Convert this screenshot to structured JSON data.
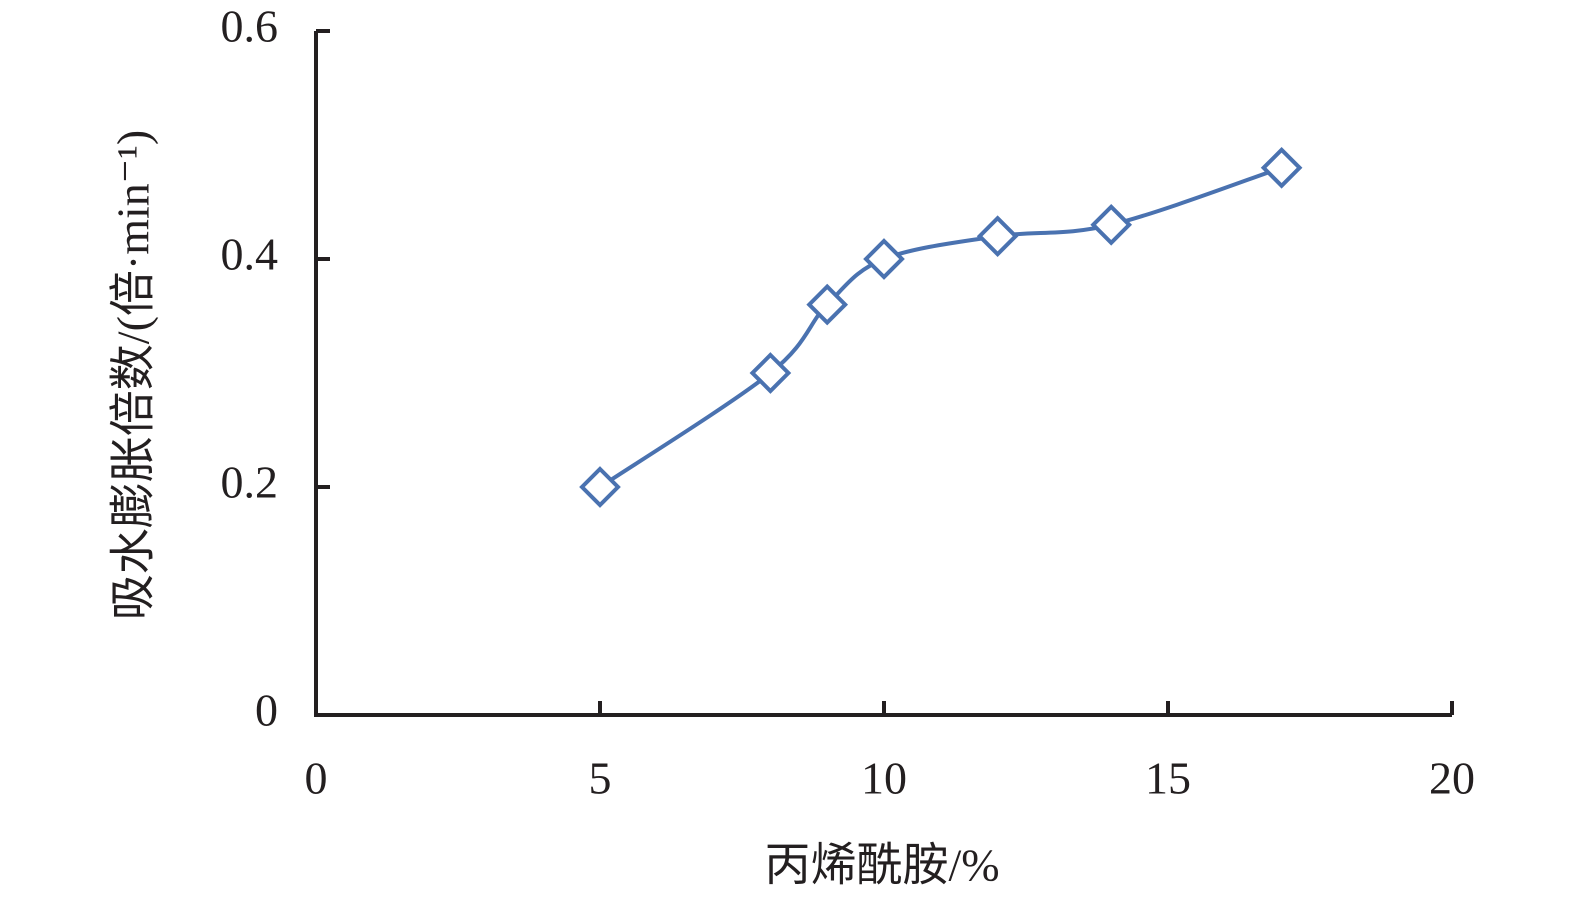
{
  "chart_data": {
    "type": "line",
    "x_label": "丙烯酰胺/%",
    "y_label": "吸水膨胀倍数/(倍·min⁻¹)",
    "x": [
      5,
      8,
      9,
      10,
      12,
      14,
      17
    ],
    "values": [
      0.2,
      0.3,
      0.36,
      0.4,
      0.42,
      0.43,
      0.48
    ],
    "color": "#4a72b0",
    "marker": "diamond",
    "smooth": true,
    "xlim": [
      0,
      20
    ],
    "xticks": [
      0,
      5,
      10,
      15,
      20
    ],
    "ylim": [
      0,
      0.6
    ],
    "yticks": [
      0,
      0.2,
      0.4,
      0.6
    ],
    "grid": false
  }
}
